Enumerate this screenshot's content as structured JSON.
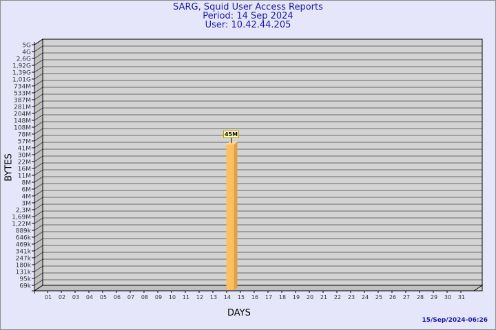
{
  "header": {
    "title": "SARG, Squid User Access Reports",
    "period": "Period: 14 Sep 2024",
    "user": "User: 10.42.44.205"
  },
  "footer": {
    "generated": "15/Sep/2024-06:26"
  },
  "colors": {
    "background": "#e6e6fa",
    "plot": "#d3d3d3",
    "bar": "#fcc060",
    "title": "#1a1aa0"
  },
  "chart_data": {
    "type": "bar",
    "xlabel": "DAYS",
    "ylabel": "BYTES",
    "y_scale": "log",
    "grid": true,
    "y_ticks": [
      "5G",
      "4G",
      "2,6G",
      "1,92G",
      "1,39G",
      "1,01G",
      "734M",
      "533M",
      "387M",
      "281M",
      "204M",
      "148M",
      "108M",
      "78M",
      "57M",
      "41M",
      "30M",
      "22M",
      "16M",
      "11M",
      "8M",
      "6M",
      "4M",
      "3M",
      "2,3M",
      "1,69M",
      "1,22M",
      "889k",
      "646k",
      "469k",
      "341k",
      "247k",
      "180k",
      "131k",
      "95k",
      "69k"
    ],
    "categories": [
      "01",
      "02",
      "03",
      "04",
      "05",
      "06",
      "07",
      "08",
      "09",
      "10",
      "11",
      "12",
      "13",
      "14",
      "15",
      "16",
      "17",
      "18",
      "19",
      "20",
      "21",
      "22",
      "23",
      "24",
      "25",
      "26",
      "27",
      "28",
      "29",
      "30",
      "31"
    ],
    "bars": [
      {
        "day": "14",
        "value": 45000000,
        "label": "45M"
      }
    ]
  }
}
